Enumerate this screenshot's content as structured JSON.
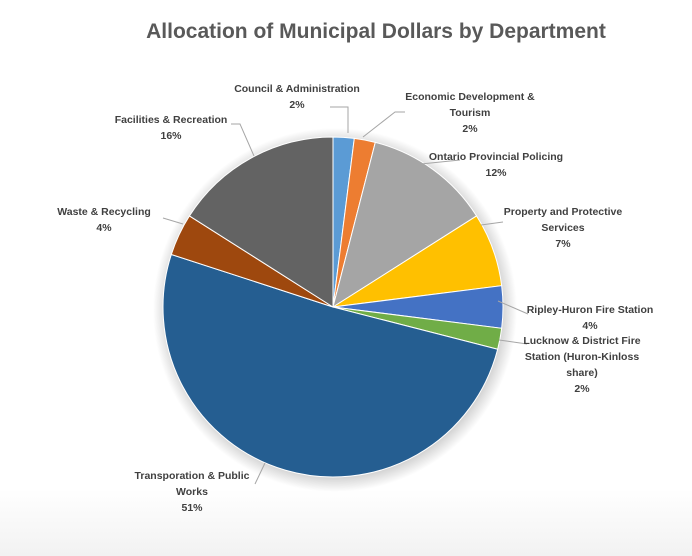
{
  "chart_data": {
    "type": "pie",
    "title": "Allocation of Municipal Dollars by Department",
    "slices": [
      {
        "label": "Council & Administration",
        "value": 2,
        "value_label": "2%",
        "color": "#5b9bd5"
      },
      {
        "label": "Economic Development & Tourism",
        "value": 2,
        "value_label": "2%",
        "color": "#ed7d31"
      },
      {
        "label": "Ontario Provincial Policing",
        "value": 12,
        "value_label": "12%",
        "color": "#a5a5a5"
      },
      {
        "label": "Property and Protective Services",
        "value": 7,
        "value_label": "7%",
        "color": "#ffc000"
      },
      {
        "label": "Ripley-Huron Fire Station",
        "value": 4,
        "value_label": "4%",
        "color": "#4472c4"
      },
      {
        "label": "Lucknow & District Fire Station (Huron-Kinloss share)",
        "value": 2,
        "value_label": "2%",
        "color": "#70ad47"
      },
      {
        "label": "Transporation & Public Works",
        "value": 51,
        "value_label": "51%",
        "color": "#255e91"
      },
      {
        "label": "Waste & Recycling",
        "value": 4,
        "value_label": "4%",
        "color": "#9e480e"
      },
      {
        "label": "Facilities & Recreation",
        "value": 16,
        "value_label": "16%",
        "color": "#636363"
      }
    ],
    "start_angle_deg": 0,
    "direction": "clockwise",
    "legend": "none"
  }
}
